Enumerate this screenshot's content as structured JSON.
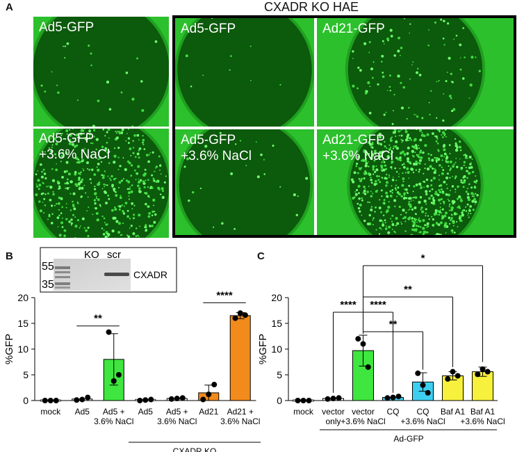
{
  "panelA": {
    "letter": "A",
    "ko_title": "CXADR KO HAE",
    "wells": [
      {
        "label1": "Ad5-GFP",
        "label2": ""
      },
      {
        "label1": "Ad5-GFP",
        "label2": ""
      },
      {
        "label1": "Ad21-GFP",
        "label2": ""
      },
      {
        "label1": "Ad5-GFP",
        "label2": "+3.6% NaCl"
      },
      {
        "label1": "Ad5-GFP",
        "label2": "+3.6% NaCl"
      },
      {
        "label1": "Ad21-GFP",
        "label2": "+3.6% NaCl"
      }
    ]
  },
  "panelB": {
    "letter": "B",
    "blot": {
      "lanes": [
        "KO",
        "scr"
      ],
      "markers": [
        "55",
        "35"
      ],
      "protein": "CXADR"
    },
    "group_label": "CXADR KO"
  },
  "panelC": {
    "letter": "C",
    "group_label": "Ad-GFP"
  },
  "chart_data": [
    {
      "type": "bar",
      "ylabel": "%GFP",
      "ylim": [
        0,
        20
      ],
      "yticks": [
        "0",
        "5",
        "10",
        "15",
        "20"
      ],
      "categories": [
        {
          "line1": "mock",
          "line2": ""
        },
        {
          "line1": "Ad5",
          "line2": ""
        },
        {
          "line1": "Ad5 +",
          "line2": "3.6% NaCl"
        },
        {
          "line1": "Ad5",
          "line2": ""
        },
        {
          "line1": "Ad5 +",
          "line2": "3.6% NaCl"
        },
        {
          "line1": "Ad21",
          "line2": ""
        },
        {
          "line1": "Ad21 +",
          "line2": "3.6% NaCl"
        }
      ],
      "values": [
        0,
        0.3,
        8.0,
        0.1,
        0.4,
        1.5,
        16.5
      ],
      "errors": [
        0.1,
        0.2,
        5.0,
        0.1,
        0.1,
        1.5,
        0.6
      ],
      "points": [
        [
          0,
          0,
          0
        ],
        [
          0.1,
          0.2,
          0.6
        ],
        [
          13.3,
          3.8,
          5.0
        ],
        [
          0,
          0.1,
          0.2
        ],
        [
          0.3,
          0.4,
          0.5
        ],
        [
          0.2,
          1.2,
          3.1
        ],
        [
          16.0,
          17.0,
          16.6
        ]
      ],
      "colors": [
        "#ffffff",
        "#ffffff",
        "#3fe63f",
        "#ffffff",
        "#ffffff",
        "#f28a1c",
        "#f28a1c"
      ],
      "significance": [
        {
          "from": 1,
          "to": 2,
          "y": 14.5,
          "label": "**"
        },
        {
          "from": 5,
          "to": 6,
          "y": 19.0,
          "label": "****"
        }
      ]
    },
    {
      "type": "bar",
      "ylabel": "%GFP",
      "ylim": [
        0,
        20
      ],
      "yticks": [
        "0",
        "5",
        "10",
        "15",
        "20"
      ],
      "categories": [
        {
          "line1": "mock",
          "line2": ""
        },
        {
          "line1": "vector",
          "line2": "only"
        },
        {
          "line1": "vector",
          "line2": "+3.6% NaCl"
        },
        {
          "line1": "CQ",
          "line2": ""
        },
        {
          "line1": "CQ",
          "line2": "+3.6% NaCl"
        },
        {
          "line1": "Baf A1",
          "line2": ""
        },
        {
          "line1": "Baf A1",
          "line2": "+3.6% NaCl"
        }
      ],
      "values": [
        0,
        0.4,
        9.7,
        0.6,
        3.6,
        4.8,
        5.6
      ],
      "errors": [
        0.1,
        0.1,
        3.0,
        0.2,
        1.8,
        0.8,
        0.9
      ],
      "points": [
        [
          0,
          0,
          0
        ],
        [
          0.3,
          0.4,
          0.5
        ],
        [
          12.0,
          11.0,
          6.5
        ],
        [
          0.5,
          0.6,
          0.8
        ],
        [
          5.3,
          3.0,
          1.5
        ],
        [
          4.2,
          5.6,
          4.8
        ],
        [
          5.1,
          6.1,
          5.6
        ]
      ],
      "colors": [
        "#ffffff",
        "#ffffff",
        "#3fe63f",
        "#3ecff0",
        "#3ecff0",
        "#f7f03c",
        "#f7f03c"
      ],
      "significance": [
        {
          "from": 1,
          "to": 2,
          "y": 13.5,
          "label": "****"
        },
        {
          "from": 2,
          "to": 3,
          "y": 13.5,
          "label": "****"
        },
        {
          "from": 2,
          "to": 4,
          "y": 16.0,
          "label": "**"
        },
        {
          "from": 2,
          "to": 5,
          "y": 20.0,
          "label": "**"
        },
        {
          "from": 2,
          "to": 6,
          "y": 25.0,
          "label": "*"
        }
      ]
    }
  ]
}
